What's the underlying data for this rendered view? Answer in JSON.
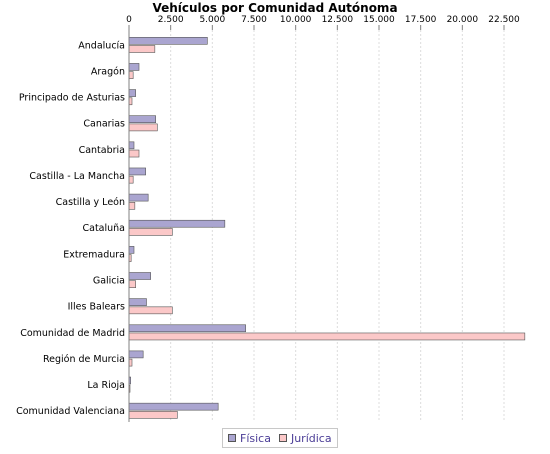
{
  "chart_data": {
    "type": "bar",
    "orientation": "horizontal",
    "title": "Vehículos por Comunidad Autónoma",
    "xlabel": "",
    "ylabel": "",
    "xlim": [
      0,
      24000
    ],
    "ticks": [
      0,
      2500,
      5000,
      7500,
      10000,
      12500,
      15000,
      17500,
      20000,
      22500
    ],
    "tick_labels": [
      "0",
      "2.500",
      "5.000",
      "7.500",
      "10.000",
      "12.500",
      "15.000",
      "17.500",
      "20.000",
      "22.500"
    ],
    "axis_position": "top",
    "grid": true,
    "legend_position": "bottom",
    "categories": [
      "Andalucía",
      "Aragón",
      "Principado de Asturias",
      "Canarias",
      "Cantabria",
      "Castilla - La Mancha",
      "Castilla y León",
      "Cataluña",
      "Extremadura",
      "Galicia",
      "Illes Balears",
      "Comunidad de Madrid",
      "Región de Murcia",
      "La Rioja",
      "Comunidad Valenciana"
    ],
    "series": [
      {
        "name": "Física",
        "color": "#aaa5d0",
        "values": [
          4700,
          600,
          400,
          1600,
          300,
          1000,
          1150,
          5750,
          300,
          1300,
          1050,
          7000,
          850,
          100,
          5350
        ]
      },
      {
        "name": "Jurídica",
        "color": "#fbc8c8",
        "values": [
          1550,
          250,
          180,
          1700,
          600,
          250,
          350,
          2600,
          130,
          400,
          2600,
          23750,
          180,
          50,
          2900
        ]
      }
    ]
  }
}
